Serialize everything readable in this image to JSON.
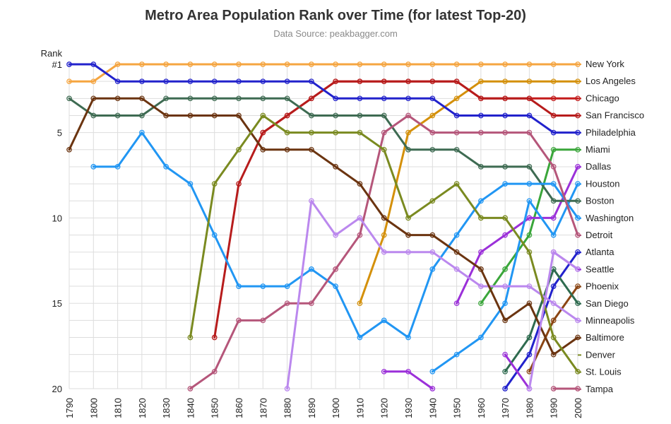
{
  "chart_data": {
    "type": "line",
    "title": "Metro Area Population Rank over Time (for latest Top-20)",
    "subtitle": "Data Source: peakbagger.com",
    "ylabel": "Rank",
    "xlabel": "",
    "x": [
      1790,
      1800,
      1810,
      1820,
      1830,
      1840,
      1850,
      1860,
      1870,
      1880,
      1890,
      1900,
      1910,
      1920,
      1930,
      1940,
      1950,
      1960,
      1970,
      1980,
      1990,
      2000
    ],
    "ylim": [
      20,
      1
    ],
    "y_reversed": true,
    "y_ticks": [
      {
        "value": 1,
        "label": "#1"
      },
      {
        "value": 5,
        "label": "5"
      },
      {
        "value": 10,
        "label": "10"
      },
      {
        "value": 15,
        "label": "15"
      },
      {
        "value": 20,
        "label": "20"
      }
    ],
    "grid": true,
    "legend_position": "right, aligned to line ends",
    "series": [
      {
        "name": "New York",
        "color": "#f5a540",
        "values": [
          2,
          2,
          1,
          1,
          1,
          1,
          1,
          1,
          1,
          1,
          1,
          1,
          1,
          1,
          1,
          1,
          1,
          1,
          1,
          1,
          1,
          1
        ]
      },
      {
        "name": "Los Angeles",
        "color": "#d4900a",
        "values": [
          null,
          null,
          null,
          null,
          null,
          null,
          null,
          null,
          null,
          null,
          null,
          null,
          15,
          11,
          5,
          4,
          3,
          2,
          2,
          2,
          2,
          2
        ]
      },
      {
        "name": "Chicago",
        "color": "#c41b1b",
        "values": [
          null,
          null,
          null,
          null,
          null,
          null,
          null,
          null,
          5,
          4,
          3,
          2,
          2,
          2,
          2,
          2,
          2,
          3,
          3,
          3,
          3,
          3
        ]
      },
      {
        "name": "San Francisco",
        "color": "#b71c1c",
        "values": [
          null,
          null,
          null,
          null,
          null,
          null,
          17,
          8,
          5,
          4,
          3,
          2,
          2,
          2,
          2,
          2,
          2,
          3,
          3,
          3,
          4,
          4
        ]
      },
      {
        "name": "Philadelphia",
        "color": "#2222cc",
        "values": [
          1,
          1,
          2,
          2,
          2,
          2,
          2,
          2,
          2,
          2,
          2,
          3,
          3,
          3,
          3,
          3,
          4,
          4,
          4,
          4,
          5,
          5
        ]
      },
      {
        "name": "Miami",
        "color": "#3aa63a",
        "values": [
          null,
          null,
          null,
          null,
          null,
          null,
          null,
          null,
          null,
          null,
          null,
          null,
          null,
          null,
          null,
          null,
          null,
          15,
          13,
          11,
          6,
          6
        ]
      },
      {
        "name": "Dallas",
        "color": "#9b30d9",
        "values": [
          null,
          null,
          null,
          null,
          null,
          null,
          null,
          null,
          null,
          null,
          null,
          null,
          null,
          null,
          null,
          null,
          15,
          12,
          11,
          10,
          10,
          7
        ]
      },
      {
        "name": "Houston",
        "color": "#2196f3",
        "values": [
          null,
          null,
          null,
          null,
          null,
          null,
          null,
          null,
          null,
          null,
          null,
          null,
          null,
          null,
          null,
          19,
          18,
          17,
          15,
          9,
          11,
          8
        ]
      },
      {
        "name": "Boston",
        "color": "#3e6b52",
        "values": [
          3,
          4,
          4,
          4,
          3,
          3,
          3,
          3,
          3,
          3,
          4,
          4,
          4,
          4,
          6,
          6,
          6,
          7,
          7,
          7,
          9,
          9
        ]
      },
      {
        "name": "Washington",
        "color": "#2196f3",
        "values": [
          null,
          7,
          7,
          5,
          7,
          8,
          11,
          14,
          14,
          14,
          13,
          14,
          17,
          16,
          17,
          13,
          11,
          9,
          8,
          8,
          8,
          10
        ]
      },
      {
        "name": "Detroit",
        "color": "#b5567a",
        "values": [
          null,
          null,
          null,
          null,
          null,
          20,
          19,
          16,
          16,
          15,
          15,
          13,
          11,
          5,
          4,
          5,
          5,
          5,
          5,
          5,
          7,
          11
        ]
      },
      {
        "name": "Atlanta",
        "color": "#2222cc",
        "values": [
          null,
          null,
          null,
          null,
          null,
          null,
          null,
          null,
          null,
          null,
          null,
          null,
          null,
          null,
          null,
          null,
          null,
          null,
          20,
          18,
          14,
          12
        ]
      },
      {
        "name": "Seattle",
        "color": "#9b30d9",
        "values": [
          null,
          null,
          null,
          null,
          null,
          null,
          null,
          null,
          null,
          null,
          null,
          null,
          null,
          null,
          null,
          null,
          null,
          null,
          null,
          null,
          12,
          13
        ]
      },
      {
        "name": "Phoenix",
        "color": "#8b4513",
        "values": [
          null,
          null,
          null,
          null,
          null,
          null,
          null,
          null,
          null,
          null,
          null,
          null,
          null,
          null,
          null,
          null,
          null,
          null,
          null,
          19,
          16,
          14
        ]
      },
      {
        "name": "San Diego",
        "color": "#2e6b4f",
        "values": [
          null,
          null,
          null,
          null,
          null,
          null,
          null,
          null,
          null,
          null,
          null,
          null,
          null,
          null,
          null,
          null,
          null,
          null,
          19,
          17,
          13,
          15
        ]
      },
      {
        "name": "Minneapolis",
        "color": "#bb88ee",
        "values": [
          null,
          null,
          null,
          null,
          null,
          null,
          null,
          null,
          null,
          20,
          9,
          11,
          10,
          12,
          12,
          12,
          13,
          14,
          14,
          14,
          15,
          16
        ]
      },
      {
        "name": "Baltimore",
        "color": "#6b3410",
        "values": [
          6,
          3,
          3,
          3,
          4,
          4,
          4,
          4,
          6,
          6,
          6,
          7,
          8,
          10,
          11,
          11,
          12,
          13,
          16,
          15,
          18,
          17
        ]
      },
      {
        "name": "Denver",
        "color": "#7a8a20",
        "values": [
          null,
          null,
          null,
          null,
          null,
          null,
          null,
          null,
          null,
          null,
          null,
          null,
          null,
          null,
          null,
          null,
          null,
          null,
          null,
          null,
          null,
          null
        ]
      },
      {
        "name": "St. Louis",
        "color": "#7a8a20",
        "values": [
          null,
          null,
          null,
          null,
          null,
          17,
          8,
          6,
          4,
          5,
          5,
          5,
          5,
          6,
          10,
          9,
          8,
          10,
          10,
          12,
          17,
          19
        ]
      },
      {
        "name": "Tampa",
        "color": "#b5567a",
        "values": [
          null,
          null,
          null,
          null,
          null,
          null,
          null,
          null,
          null,
          null,
          null,
          null,
          null,
          null,
          null,
          null,
          null,
          null,
          null,
          null,
          20,
          20
        ]
      }
    ],
    "extra_segments": [
      {
        "color": "#9b30d9",
        "x": [
          1920,
          1930,
          1940
        ],
        "values": [
          19,
          19,
          20
        ]
      },
      {
        "color": "#9b30d9",
        "x": [
          1970,
          1980
        ],
        "values": [
          18,
          20
        ]
      },
      {
        "color": "#bb88ee",
        "x": [
          1980,
          1990,
          2000
        ],
        "values": [
          20,
          12,
          13
        ]
      }
    ],
    "legend_order": [
      "New York",
      "Los Angeles",
      "Chicago",
      "San Francisco",
      "Philadelphia",
      "Miami",
      "Dallas",
      "Houston",
      "Boston",
      "Washington",
      "Detroit",
      "Atlanta",
      "Seattle",
      "Phoenix",
      "San Diego",
      "Minneapolis",
      "Baltimore",
      "Denver",
      "St. Louis",
      "Tampa"
    ]
  }
}
